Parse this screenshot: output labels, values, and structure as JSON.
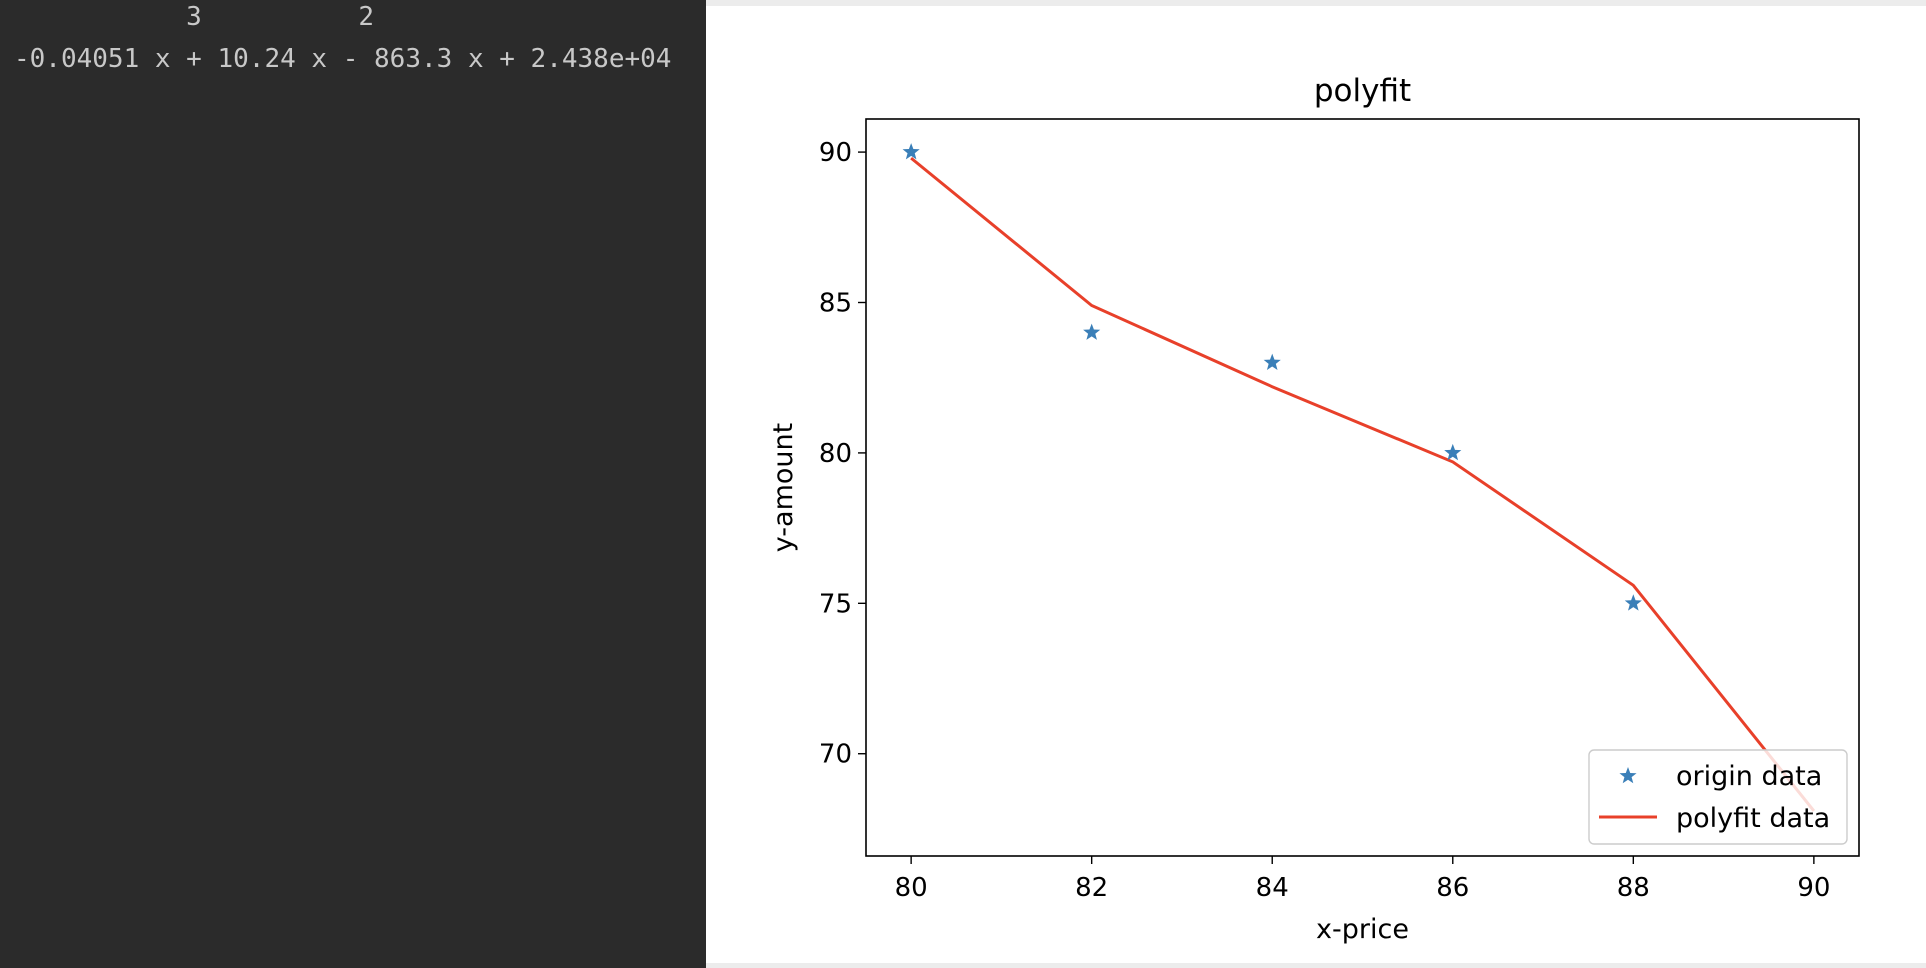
{
  "console": {
    "exponent_line": "           3          2",
    "poly_line": "-0.04051 x + 10.24 x - 863.3 x + 2.438e+04"
  },
  "chart_data": {
    "type": "line",
    "title": "polyfit",
    "xlabel": "x-price",
    "ylabel": "y-amount",
    "xlim": [
      79.5,
      90.5
    ],
    "ylim": [
      66.6,
      91.1
    ],
    "xticks": [
      80,
      82,
      84,
      86,
      88,
      90
    ],
    "yticks": [
      70,
      75,
      80,
      85,
      90
    ],
    "legend_position": "lower right",
    "series": [
      {
        "name": "origin data",
        "kind": "scatter",
        "marker": "star",
        "color": "#3a7fb8",
        "x": [
          80,
          82,
          84,
          86,
          88
        ],
        "y": [
          90,
          84,
          83,
          80,
          75
        ]
      },
      {
        "name": "polyfit data",
        "kind": "line",
        "color": "#e8402a",
        "x": [
          80,
          82,
          84,
          86,
          88,
          90
        ],
        "y": [
          89.8,
          84.9,
          82.2,
          79.7,
          75.6,
          68.1
        ]
      }
    ]
  }
}
